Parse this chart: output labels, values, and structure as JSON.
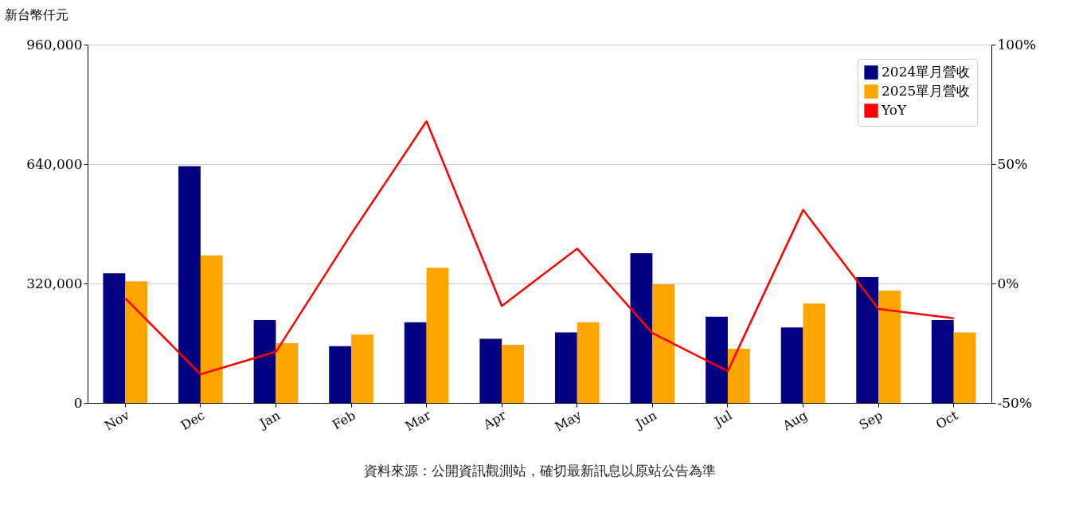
{
  "chart_data": {
    "type": "bar",
    "ylabel": "新台幣仟元",
    "annotations": [
      "資料來源：公開資訊觀測站，確切最新訊息以原站公告為準"
    ],
    "categories": [
      "Nov",
      "Dec",
      "Jan",
      "Feb",
      "Mar",
      "Apr",
      "May",
      "Jun",
      "Jul",
      "Aug",
      "Sep",
      "Oct"
    ],
    "series": [
      {
        "name": "2024單月營收",
        "color": "#000080",
        "values": [
          347000,
          634000,
          222000,
          152000,
          216000,
          172000,
          189000,
          401000,
          231000,
          202000,
          337000,
          222000
        ]
      },
      {
        "name": "2025單月營收",
        "color": "#ffa500",
        "values": [
          326000,
          395000,
          160000,
          183000,
          362000,
          156000,
          216000,
          318000,
          145000,
          266000,
          301000,
          189000
        ]
      },
      {
        "name": "YoY",
        "type": "line",
        "axis": "y2",
        "color": "#ff0000",
        "values": [
          -6.2,
          -38,
          -28.6,
          20.7,
          67.9,
          -9.4,
          14.6,
          -20.8,
          -36.7,
          30.8,
          -10.7,
          -14.6
        ]
      }
    ],
    "ylim": [
      0,
      960000
    ],
    "yticks": [
      0,
      {
        "value": 320000,
        "label": "320,000"
      },
      {
        "value": 640000,
        "label": "640,000"
      },
      {
        "value": 960000,
        "label": "960,000"
      }
    ],
    "y2lim": [
      -50,
      100
    ],
    "y2ticks": [
      {
        "value": -50,
        "label": "-50%"
      },
      {
        "value": 0,
        "label": "0%"
      },
      {
        "value": 50,
        "label": "50%"
      },
      {
        "value": 100,
        "label": "100%"
      }
    ],
    "grid": "y",
    "legend": "top right"
  }
}
